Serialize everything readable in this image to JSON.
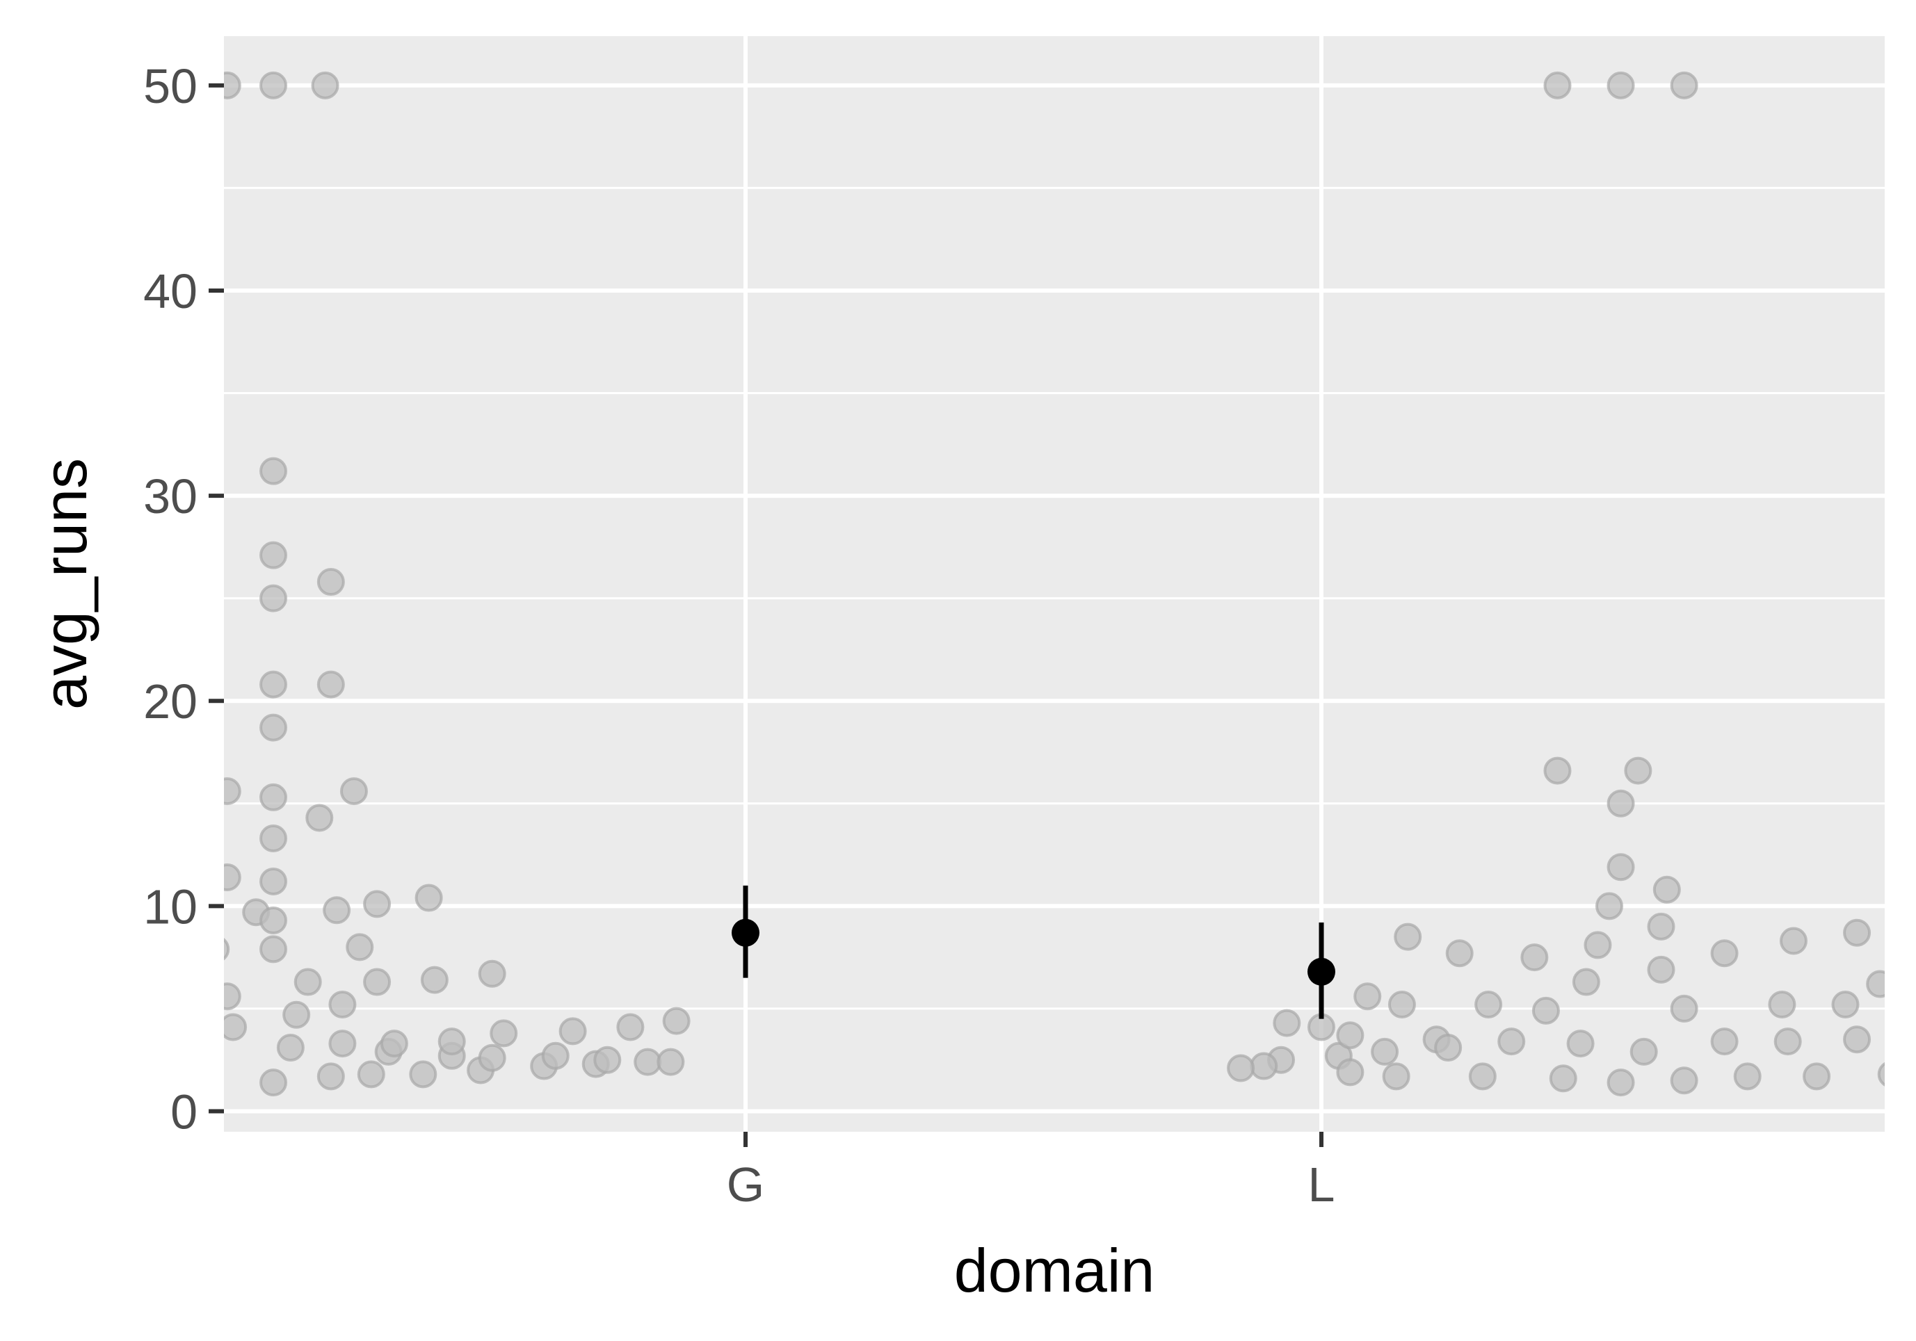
{
  "chart_data": {
    "type": "scatter",
    "subtype": "beeswarm-with-mean-and-errorbar",
    "title": "",
    "xlabel": "domain",
    "ylabel": "avg_runs",
    "categories": [
      "G",
      "L"
    ],
    "ylim": [
      -1,
      52.4
    ],
    "yticks": [
      0,
      10,
      20,
      30,
      40,
      50
    ],
    "grid": true,
    "legend": "none",
    "colors": {
      "panel": "#ebebeb",
      "grid": "#ffffff",
      "point_fill": "#bdbdbd",
      "point_stroke": "#a8a8a8",
      "summary": "#000000",
      "tick": "#333333",
      "tick_label": "#4d4d4d",
      "axis_title": "#000000"
    },
    "series": [
      {
        "category": "G",
        "points": [
          {
            "x": -1.8,
            "y": 3.2
          },
          {
            "x": -1.73,
            "y": 3.2
          },
          {
            "x": -1.66,
            "y": 2.7
          },
          {
            "x": -1.59,
            "y": 2.7
          },
          {
            "x": -1.52,
            "y": 2.5
          },
          {
            "x": -1.45,
            "y": 2.4
          },
          {
            "x": -1.38,
            "y": 2.3
          },
          {
            "x": -1.31,
            "y": 2.2
          },
          {
            "x": -1.24,
            "y": 2.1
          },
          {
            "x": -1.17,
            "y": 1.9
          },
          {
            "x": -1.1,
            "y": 1.8
          },
          {
            "x": -1.03,
            "y": 1.8
          },
          {
            "x": -0.96,
            "y": 1.7
          },
          {
            "x": -1.34,
            "y": 4.3
          },
          {
            "x": -1.26,
            "y": 4.1
          },
          {
            "x": -1.2,
            "y": 3.5
          },
          {
            "x": -1.1,
            "y": 3.5
          },
          {
            "x": -1.03,
            "y": 3.4
          },
          {
            "x": -0.96,
            "y": 3.2
          },
          {
            "x": -0.89,
            "y": 4.1
          },
          {
            "x": -1.22,
            "y": 6.9
          },
          {
            "x": -1.12,
            "y": 6.7
          },
          {
            "x": -1.05,
            "y": 6.4
          },
          {
            "x": -0.98,
            "y": 6.0
          },
          {
            "x": -0.9,
            "y": 5.6
          },
          {
            "x": -0.82,
            "y": 7.9
          },
          {
            "x": -0.76,
            "y": 6.3
          },
          {
            "x": -1.08,
            "y": 10.4
          },
          {
            "x": -1.0,
            "y": 8.5
          },
          {
            "x": -0.93,
            "y": 10.0
          },
          {
            "x": -0.92,
            "y": 7.9
          },
          {
            "x": -0.85,
            "y": 9.7
          },
          {
            "x": -0.9,
            "y": 11.4
          },
          {
            "x": -0.82,
            "y": 9.3
          },
          {
            "x": -0.9,
            "y": 15.6
          },
          {
            "x": -0.82,
            "y": 15.3
          },
          {
            "x": -0.82,
            "y": 13.3
          },
          {
            "x": -0.82,
            "y": 11.2
          },
          {
            "x": -0.82,
            "y": 18.7
          },
          {
            "x": -0.82,
            "y": 20.8
          },
          {
            "x": -0.72,
            "y": 20.8
          },
          {
            "x": -0.82,
            "y": 25.0
          },
          {
            "x": -0.82,
            "y": 27.1
          },
          {
            "x": -0.72,
            "y": 25.8
          },
          {
            "x": -0.82,
            "y": 31.2
          },
          {
            "x": -0.9,
            "y": 50.0
          },
          {
            "x": -0.82,
            "y": 50.0
          },
          {
            "x": -0.73,
            "y": 50.0
          },
          {
            "x": -0.82,
            "y": 1.4
          },
          {
            "x": -0.79,
            "y": 3.1
          },
          {
            "x": -0.78,
            "y": 4.7
          },
          {
            "x": -0.74,
            "y": 14.3
          },
          {
            "x": -0.72,
            "y": 1.7
          },
          {
            "x": -0.71,
            "y": 9.8
          },
          {
            "x": -0.7,
            "y": 3.3
          },
          {
            "x": -0.7,
            "y": 5.2
          },
          {
            "x": -0.68,
            "y": 15.6
          },
          {
            "x": -0.67,
            "y": 8.0
          },
          {
            "x": -0.65,
            "y": 1.8
          },
          {
            "x": -0.64,
            "y": 6.3
          },
          {
            "x": -0.64,
            "y": 10.1
          },
          {
            "x": -0.62,
            "y": 2.9
          },
          {
            "x": -0.61,
            "y": 3.3
          },
          {
            "x": -0.56,
            "y": 1.8
          },
          {
            "x": -0.54,
            "y": 6.4
          },
          {
            "x": -0.55,
            "y": 10.4
          },
          {
            "x": -0.51,
            "y": 2.7
          },
          {
            "x": -0.51,
            "y": 3.4
          },
          {
            "x": -0.46,
            "y": 2.0
          },
          {
            "x": -0.44,
            "y": 6.7
          },
          {
            "x": -0.42,
            "y": 3.8
          },
          {
            "x": -0.44,
            "y": 2.6
          },
          {
            "x": -0.35,
            "y": 2.2
          },
          {
            "x": -0.33,
            "y": 2.7
          },
          {
            "x": -0.3,
            "y": 3.9
          },
          {
            "x": -0.26,
            "y": 2.3
          },
          {
            "x": -0.24,
            "y": 2.5
          },
          {
            "x": -0.2,
            "y": 4.1
          },
          {
            "x": -0.17,
            "y": 2.4
          },
          {
            "x": -0.13,
            "y": 2.4
          },
          {
            "x": -0.12,
            "y": 4.4
          }
        ],
        "mean": 8.7,
        "ci_low": 6.5,
        "ci_high": 11.0
      },
      {
        "category": "L",
        "points": [
          {
            "x": -0.06,
            "y": 4.3
          },
          {
            "x": -0.07,
            "y": 2.5
          },
          {
            "x": -0.1,
            "y": 2.2
          },
          {
            "x": -0.14,
            "y": 2.1
          },
          {
            "x": 0.0,
            "y": 4.1
          },
          {
            "x": 0.03,
            "y": 2.7
          },
          {
            "x": 0.05,
            "y": 1.9
          },
          {
            "x": 0.05,
            "y": 3.7
          },
          {
            "x": 0.08,
            "y": 5.6
          },
          {
            "x": 0.11,
            "y": 2.9
          },
          {
            "x": 0.13,
            "y": 1.7
          },
          {
            "x": 0.14,
            "y": 5.2
          },
          {
            "x": 0.15,
            "y": 8.5
          },
          {
            "x": 0.2,
            "y": 3.5
          },
          {
            "x": 0.22,
            "y": 3.1
          },
          {
            "x": 0.24,
            "y": 7.7
          },
          {
            "x": 0.28,
            "y": 1.7
          },
          {
            "x": 0.29,
            "y": 5.2
          },
          {
            "x": 0.33,
            "y": 3.4
          },
          {
            "x": 0.37,
            "y": 7.5
          },
          {
            "x": 0.39,
            "y": 4.9
          },
          {
            "x": 0.42,
            "y": 1.6
          },
          {
            "x": 0.45,
            "y": 3.3
          },
          {
            "x": 0.46,
            "y": 6.3
          },
          {
            "x": 0.48,
            "y": 8.1
          },
          {
            "x": 0.5,
            "y": 10.0
          },
          {
            "x": 0.52,
            "y": 11.9
          },
          {
            "x": 0.52,
            "y": 15.0
          },
          {
            "x": 0.41,
            "y": 16.6
          },
          {
            "x": 0.55,
            "y": 16.6
          },
          {
            "x": 0.52,
            "y": 1.4
          },
          {
            "x": 0.59,
            "y": 6.9
          },
          {
            "x": 0.56,
            "y": 2.9
          },
          {
            "x": 0.59,
            "y": 9.0
          },
          {
            "x": 0.6,
            "y": 10.8
          },
          {
            "x": 0.63,
            "y": 5.0
          },
          {
            "x": 0.63,
            "y": 1.5
          },
          {
            "x": 0.7,
            "y": 3.4
          },
          {
            "x": 0.7,
            "y": 7.7
          },
          {
            "x": 0.74,
            "y": 1.7
          },
          {
            "x": 0.8,
            "y": 5.2
          },
          {
            "x": 0.81,
            "y": 3.4
          },
          {
            "x": 0.82,
            "y": 8.3
          },
          {
            "x": 0.86,
            "y": 1.7
          },
          {
            "x": 0.91,
            "y": 5.2
          },
          {
            "x": 0.93,
            "y": 3.5
          },
          {
            "x": 0.93,
            "y": 8.7
          },
          {
            "x": 0.97,
            "y": 6.2
          },
          {
            "x": 0.99,
            "y": 1.8
          },
          {
            "x": 1.03,
            "y": 3.7
          },
          {
            "x": 1.07,
            "y": 1.9
          },
          {
            "x": 1.1,
            "y": 4.2
          },
          {
            "x": 1.13,
            "y": 2.2
          },
          {
            "x": 1.21,
            "y": 2.5
          },
          {
            "x": 1.28,
            "y": 2.5
          },
          {
            "x": 1.35,
            "y": 2.6
          },
          {
            "x": 1.42,
            "y": 2.6
          },
          {
            "x": 1.49,
            "y": 2.7
          },
          {
            "x": 1.56,
            "y": 2.8
          },
          {
            "x": 1.63,
            "y": 2.9
          },
          {
            "x": 1.7,
            "y": 3.0
          },
          {
            "x": 0.41,
            "y": 50.0
          },
          {
            "x": 0.52,
            "y": 50.0
          },
          {
            "x": 0.63,
            "y": 50.0
          }
        ],
        "mean": 6.8,
        "ci_low": 4.5,
        "ci_high": 9.2
      }
    ]
  }
}
